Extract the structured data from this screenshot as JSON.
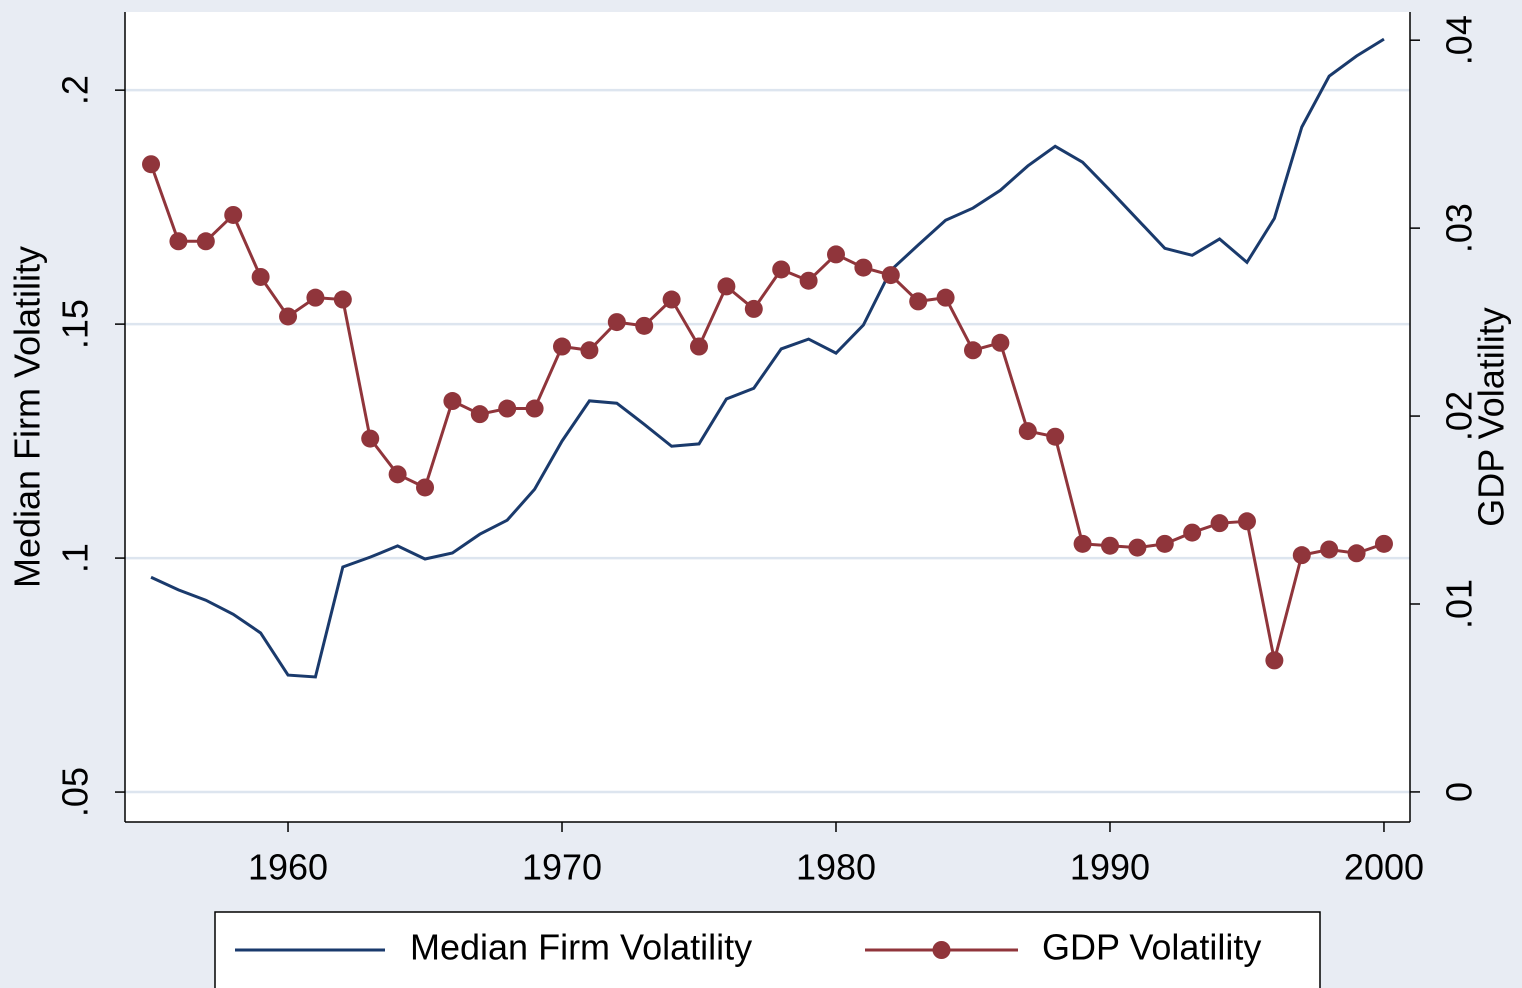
{
  "chart_data": {
    "type": "line",
    "y_label": "Median Firm Volatility",
    "y2_label": "GDP Volatility",
    "x": [
      1955,
      1956,
      1957,
      1958,
      1959,
      1960,
      1961,
      1962,
      1963,
      1964,
      1965,
      1966,
      1967,
      1968,
      1969,
      1970,
      1971,
      1972,
      1973,
      1974,
      1975,
      1976,
      1977,
      1978,
      1979,
      1980,
      1981,
      1982,
      1983,
      1984,
      1985,
      1986,
      1987,
      1988,
      1989,
      1990,
      1991,
      1992,
      1993,
      1994,
      1995,
      1996,
      1997,
      1998,
      1999,
      2000
    ],
    "series": [
      {
        "name": "Median Firm Volatility",
        "color": "#1a3a6c",
        "marker": false,
        "values": [
          0.0959,
          0.0932,
          0.091,
          0.088,
          0.084,
          0.075,
          0.0746,
          0.0981,
          0.1002,
          0.1026,
          0.0998,
          0.1011,
          0.1051,
          0.1081,
          0.1147,
          0.125,
          0.1336,
          0.1331,
          0.1286,
          0.1239,
          0.1244,
          0.134,
          0.1363,
          0.1447,
          0.1468,
          0.1438,
          0.1498,
          0.1615,
          0.1669,
          0.1722,
          0.1748,
          0.1786,
          0.1838,
          0.188,
          0.1846,
          0.1786,
          0.1724,
          0.1662,
          0.1647,
          0.1682,
          0.1632,
          0.1726,
          0.1921,
          0.203,
          0.2073,
          0.2109
        ]
      },
      {
        "name": "GDP Volatility",
        "color": "#90353b",
        "marker": true,
        "axis": "y2",
        "values": [
          0.0334,
          0.0293,
          0.0293,
          0.0307,
          0.0274,
          0.0253,
          0.0263,
          0.0262,
          0.0188,
          0.0169,
          0.0162,
          0.0208,
          0.0201,
          0.0204,
          0.0204,
          0.0237,
          0.0235,
          0.025,
          0.0248,
          0.0262,
          0.0237,
          0.0269,
          0.0257,
          0.0278,
          0.0272,
          0.0286,
          0.0279,
          0.0275,
          0.0261,
          0.0263,
          0.0235,
          0.0239,
          0.0192,
          0.0189,
          0.0132,
          0.0131,
          0.013,
          0.0132,
          0.0138,
          0.0143,
          0.0144,
          0.007,
          0.0126,
          0.0129,
          0.0127,
          0.0132
        ]
      }
    ],
    "xlim": [
      1954.05,
      2000.95
    ],
    "xticks": [
      1960,
      1970,
      1980,
      1990,
      2000
    ],
    "ylim": [
      0.0436,
      0.2167
    ],
    "yticks": [
      {
        "value": 0.05,
        "label": ".05"
      },
      {
        "value": 0.1,
        "label": ".1"
      },
      {
        "value": 0.15,
        "label": ".15"
      },
      {
        "value": 0.2,
        "label": ".2"
      }
    ],
    "y2lim": [
      -0.0016,
      0.0415
    ],
    "y2ticks": [
      0,
      {
        "value": 0.01,
        "label": ".01"
      },
      {
        "value": 0.02,
        "label": ".02"
      },
      {
        "value": 0.03,
        "label": ".03"
      },
      {
        "value": 0.04,
        "label": ".04"
      }
    ],
    "grid": true,
    "legend": "bottom"
  }
}
